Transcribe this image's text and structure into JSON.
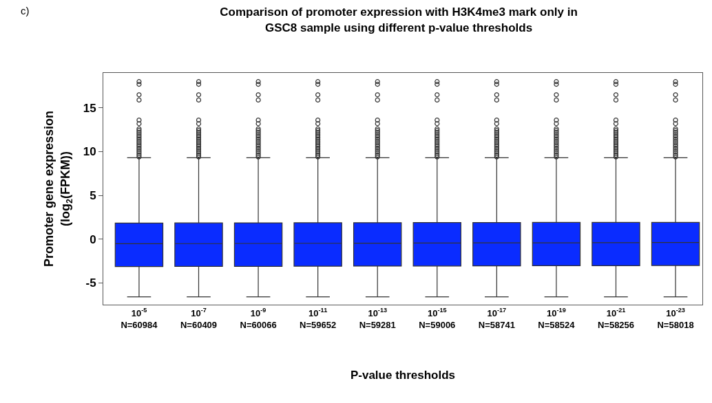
{
  "chart_data": {
    "type": "box",
    "title": "Comparison of promoter expression with H3K4me3 mark only in\nGSC8 sample using different p-value thresholds",
    "xlabel": "P-value thresholds",
    "ylabel": "Promoter gene expression\n(log$_{2}$(FPKM))",
    "annotations": [
      "c)"
    ],
    "categories": [
      "10$^{-5}$\nN=60984",
      "10$^{-7}$\nN=60409",
      "10$^{-9}$\nN=60066",
      "10$^{-11}$\nN=59652",
      "10$^{-13}$\nN=59281",
      "10$^{-15}$\nN=59006",
      "10$^{-17}$\nN=58741",
      "10$^{-19}$\nN=58524",
      "10$^{-21}$\nN=58256",
      "10$^{-23}$\nN=58018"
    ],
    "color": "#0a2cff",
    "marker": "circle",
    "grid": false,
    "ylim": [
      -7.5,
      19
    ],
    "yticks": [
      -5,
      0,
      5,
      10,
      15
    ],
    "boxes": [
      {
        "low": -6.6,
        "q1": -3.15,
        "median": -0.53,
        "q3": 1.83,
        "high": 9.3,
        "outliers": [
          9.4,
          9.6,
          9.8,
          10,
          10.2,
          10.4,
          10.6,
          10.8,
          11,
          11.2,
          11.4,
          11.6,
          11.8,
          12,
          12.2,
          12.4,
          12.6,
          13.2,
          13.6,
          15.9,
          16.5,
          17.7,
          18
        ]
      },
      {
        "low": -6.6,
        "q1": -3.13,
        "median": -0.52,
        "q3": 1.84,
        "high": 9.3,
        "outliers": [
          9.4,
          9.6,
          9.8,
          10,
          10.2,
          10.4,
          10.6,
          10.8,
          11,
          11.2,
          11.4,
          11.6,
          11.8,
          12,
          12.2,
          12.4,
          12.6,
          13.2,
          13.6,
          15.9,
          16.5,
          17.7,
          18
        ]
      },
      {
        "low": -6.6,
        "q1": -3.12,
        "median": -0.5,
        "q3": 1.85,
        "high": 9.3,
        "outliers": [
          9.4,
          9.6,
          9.8,
          10,
          10.2,
          10.4,
          10.6,
          10.8,
          11,
          11.2,
          11.4,
          11.6,
          11.8,
          12,
          12.2,
          12.4,
          12.6,
          13.2,
          13.6,
          15.9,
          16.5,
          17.7,
          18
        ]
      },
      {
        "low": -6.6,
        "q1": -3.1,
        "median": -0.48,
        "q3": 1.86,
        "high": 9.3,
        "outliers": [
          9.4,
          9.6,
          9.8,
          10,
          10.2,
          10.4,
          10.6,
          10.8,
          11,
          11.2,
          11.4,
          11.6,
          11.8,
          12,
          12.2,
          12.4,
          12.6,
          13.2,
          13.6,
          15.9,
          16.5,
          17.7,
          18
        ]
      },
      {
        "low": -6.6,
        "q1": -3.09,
        "median": -0.47,
        "q3": 1.87,
        "high": 9.3,
        "outliers": [
          9.4,
          9.6,
          9.8,
          10,
          10.2,
          10.4,
          10.6,
          10.8,
          11,
          11.2,
          11.4,
          11.6,
          11.8,
          12,
          12.2,
          12.4,
          12.6,
          13.2,
          13.6,
          15.9,
          16.5,
          17.7,
          18
        ]
      },
      {
        "low": -6.6,
        "q1": -3.08,
        "median": -0.45,
        "q3": 1.88,
        "high": 9.3,
        "outliers": [
          9.4,
          9.6,
          9.8,
          10,
          10.2,
          10.4,
          10.6,
          10.8,
          11,
          11.2,
          11.4,
          11.6,
          11.8,
          12,
          12.2,
          12.4,
          12.6,
          13.2,
          13.6,
          15.9,
          16.5,
          17.7,
          18
        ]
      },
      {
        "low": -6.6,
        "q1": -3.06,
        "median": -0.44,
        "q3": 1.89,
        "high": 9.3,
        "outliers": [
          9.4,
          9.6,
          9.8,
          10,
          10.2,
          10.4,
          10.6,
          10.8,
          11,
          11.2,
          11.4,
          11.6,
          11.8,
          12,
          12.2,
          12.4,
          12.6,
          13.2,
          13.6,
          15.9,
          16.5,
          17.7,
          18
        ]
      },
      {
        "low": -6.6,
        "q1": -3.05,
        "median": -0.43,
        "q3": 1.9,
        "high": 9.3,
        "outliers": [
          9.4,
          9.6,
          9.8,
          10,
          10.2,
          10.4,
          10.6,
          10.8,
          11,
          11.2,
          11.4,
          11.6,
          11.8,
          12,
          12.2,
          12.4,
          12.6,
          13.2,
          13.6,
          15.9,
          16.5,
          17.7,
          18
        ]
      },
      {
        "low": -6.6,
        "q1": -3.04,
        "median": -0.42,
        "q3": 1.9,
        "high": 9.3,
        "outliers": [
          9.4,
          9.6,
          9.8,
          10,
          10.2,
          10.4,
          10.6,
          10.8,
          11,
          11.2,
          11.4,
          11.6,
          11.8,
          12,
          12.2,
          12.4,
          12.6,
          13.2,
          13.6,
          15.9,
          16.5,
          17.7,
          18
        ]
      },
      {
        "low": -6.6,
        "q1": -3.02,
        "median": -0.4,
        "q3": 1.91,
        "high": 9.3,
        "outliers": [
          9.4,
          9.6,
          9.8,
          10,
          10.2,
          10.4,
          10.6,
          10.8,
          11,
          11.2,
          11.4,
          11.6,
          11.8,
          12,
          12.2,
          12.4,
          12.6,
          13.2,
          13.6,
          15.9,
          16.5,
          17.7,
          18
        ]
      }
    ]
  }
}
